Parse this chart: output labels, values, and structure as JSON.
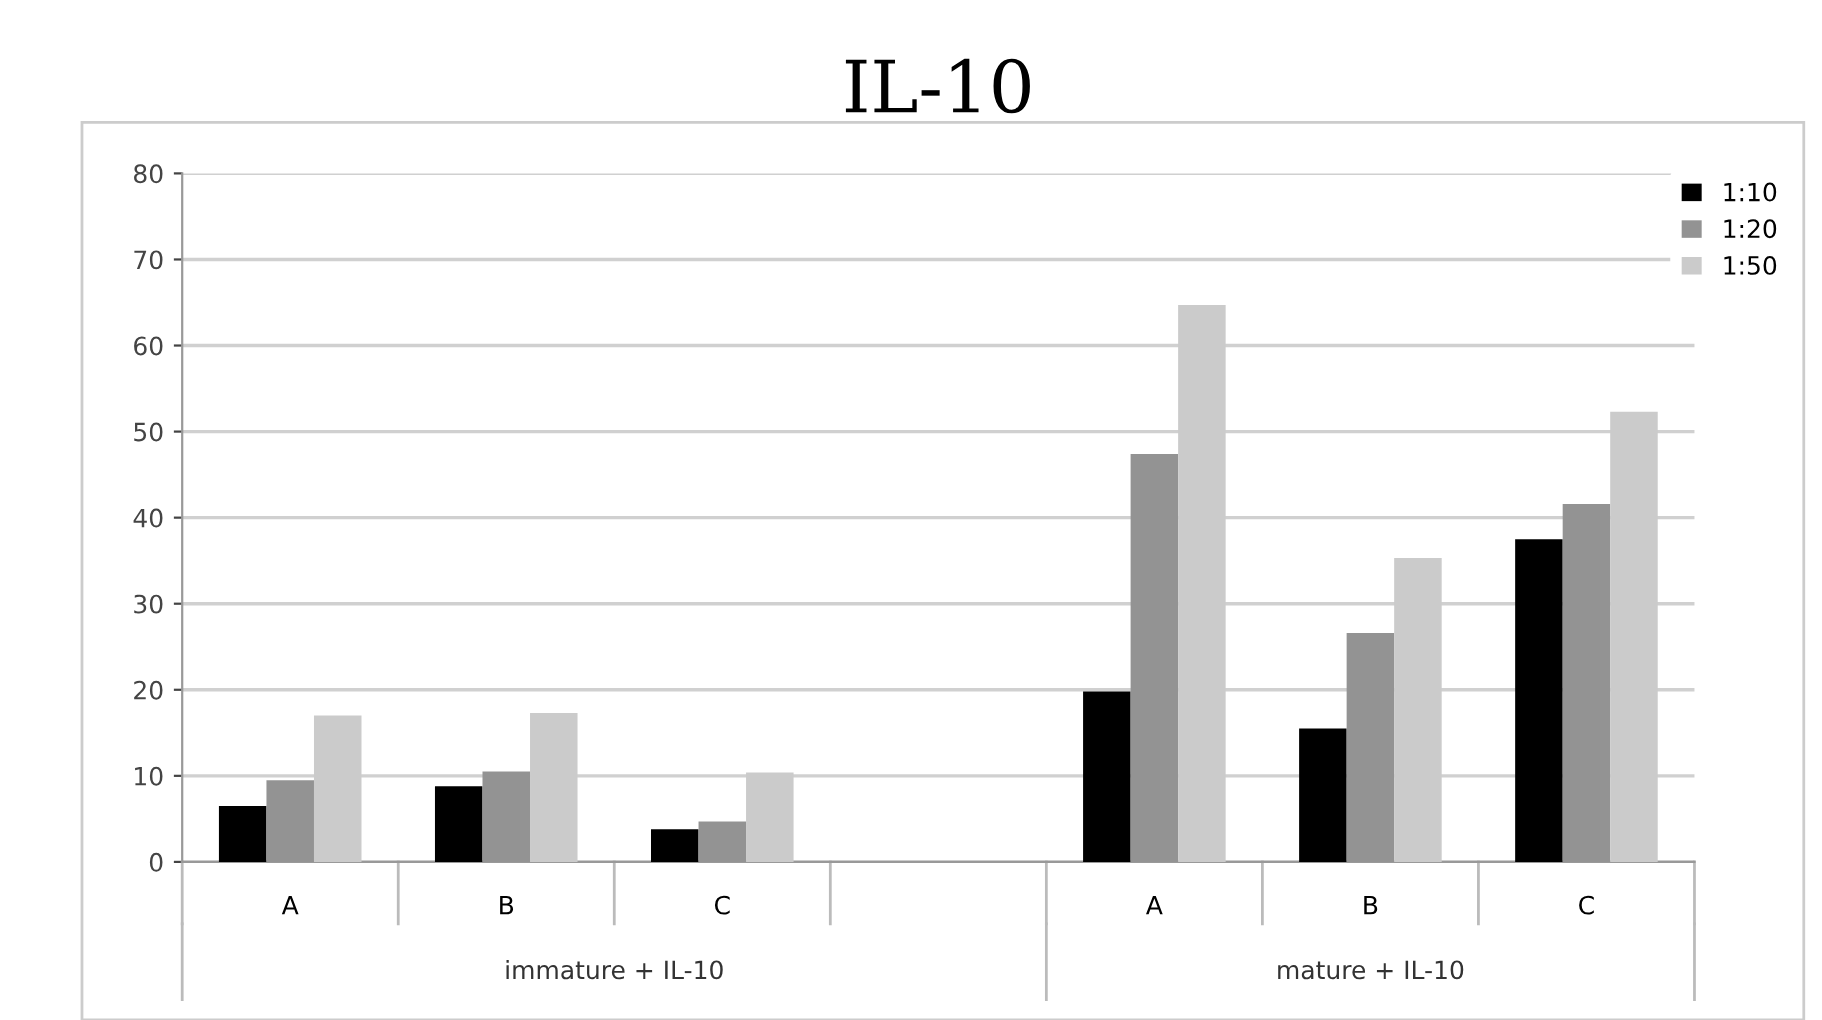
{
  "chart_data": {
    "type": "bar",
    "title": "IL-10",
    "categories": [
      "A",
      "B",
      "C",
      null,
      "A",
      "B",
      "C"
    ],
    "series": [
      {
        "name": "1:10",
        "color": "#000000",
        "values": [
          6.5,
          8.8,
          3.8,
          null,
          19.8,
          15.5,
          37.5
        ]
      },
      {
        "name": "1:20",
        "color": "#939393",
        "values": [
          9.5,
          10.5,
          4.7,
          null,
          47.4,
          26.6,
          41.6
        ]
      },
      {
        "name": "1:50",
        "color": "#cbcbcb",
        "values": [
          17,
          17.3,
          10.4,
          null,
          64.7,
          35.3,
          52.3
        ]
      }
    ],
    "annotations": [
      "immature + IL-10",
      "mature + IL-10"
    ],
    "ylim": [
      0,
      80
    ],
    "yticks": [
      0,
      10,
      20,
      30,
      40,
      50,
      60,
      70,
      80
    ],
    "grid": "y",
    "legend": "top right"
  }
}
